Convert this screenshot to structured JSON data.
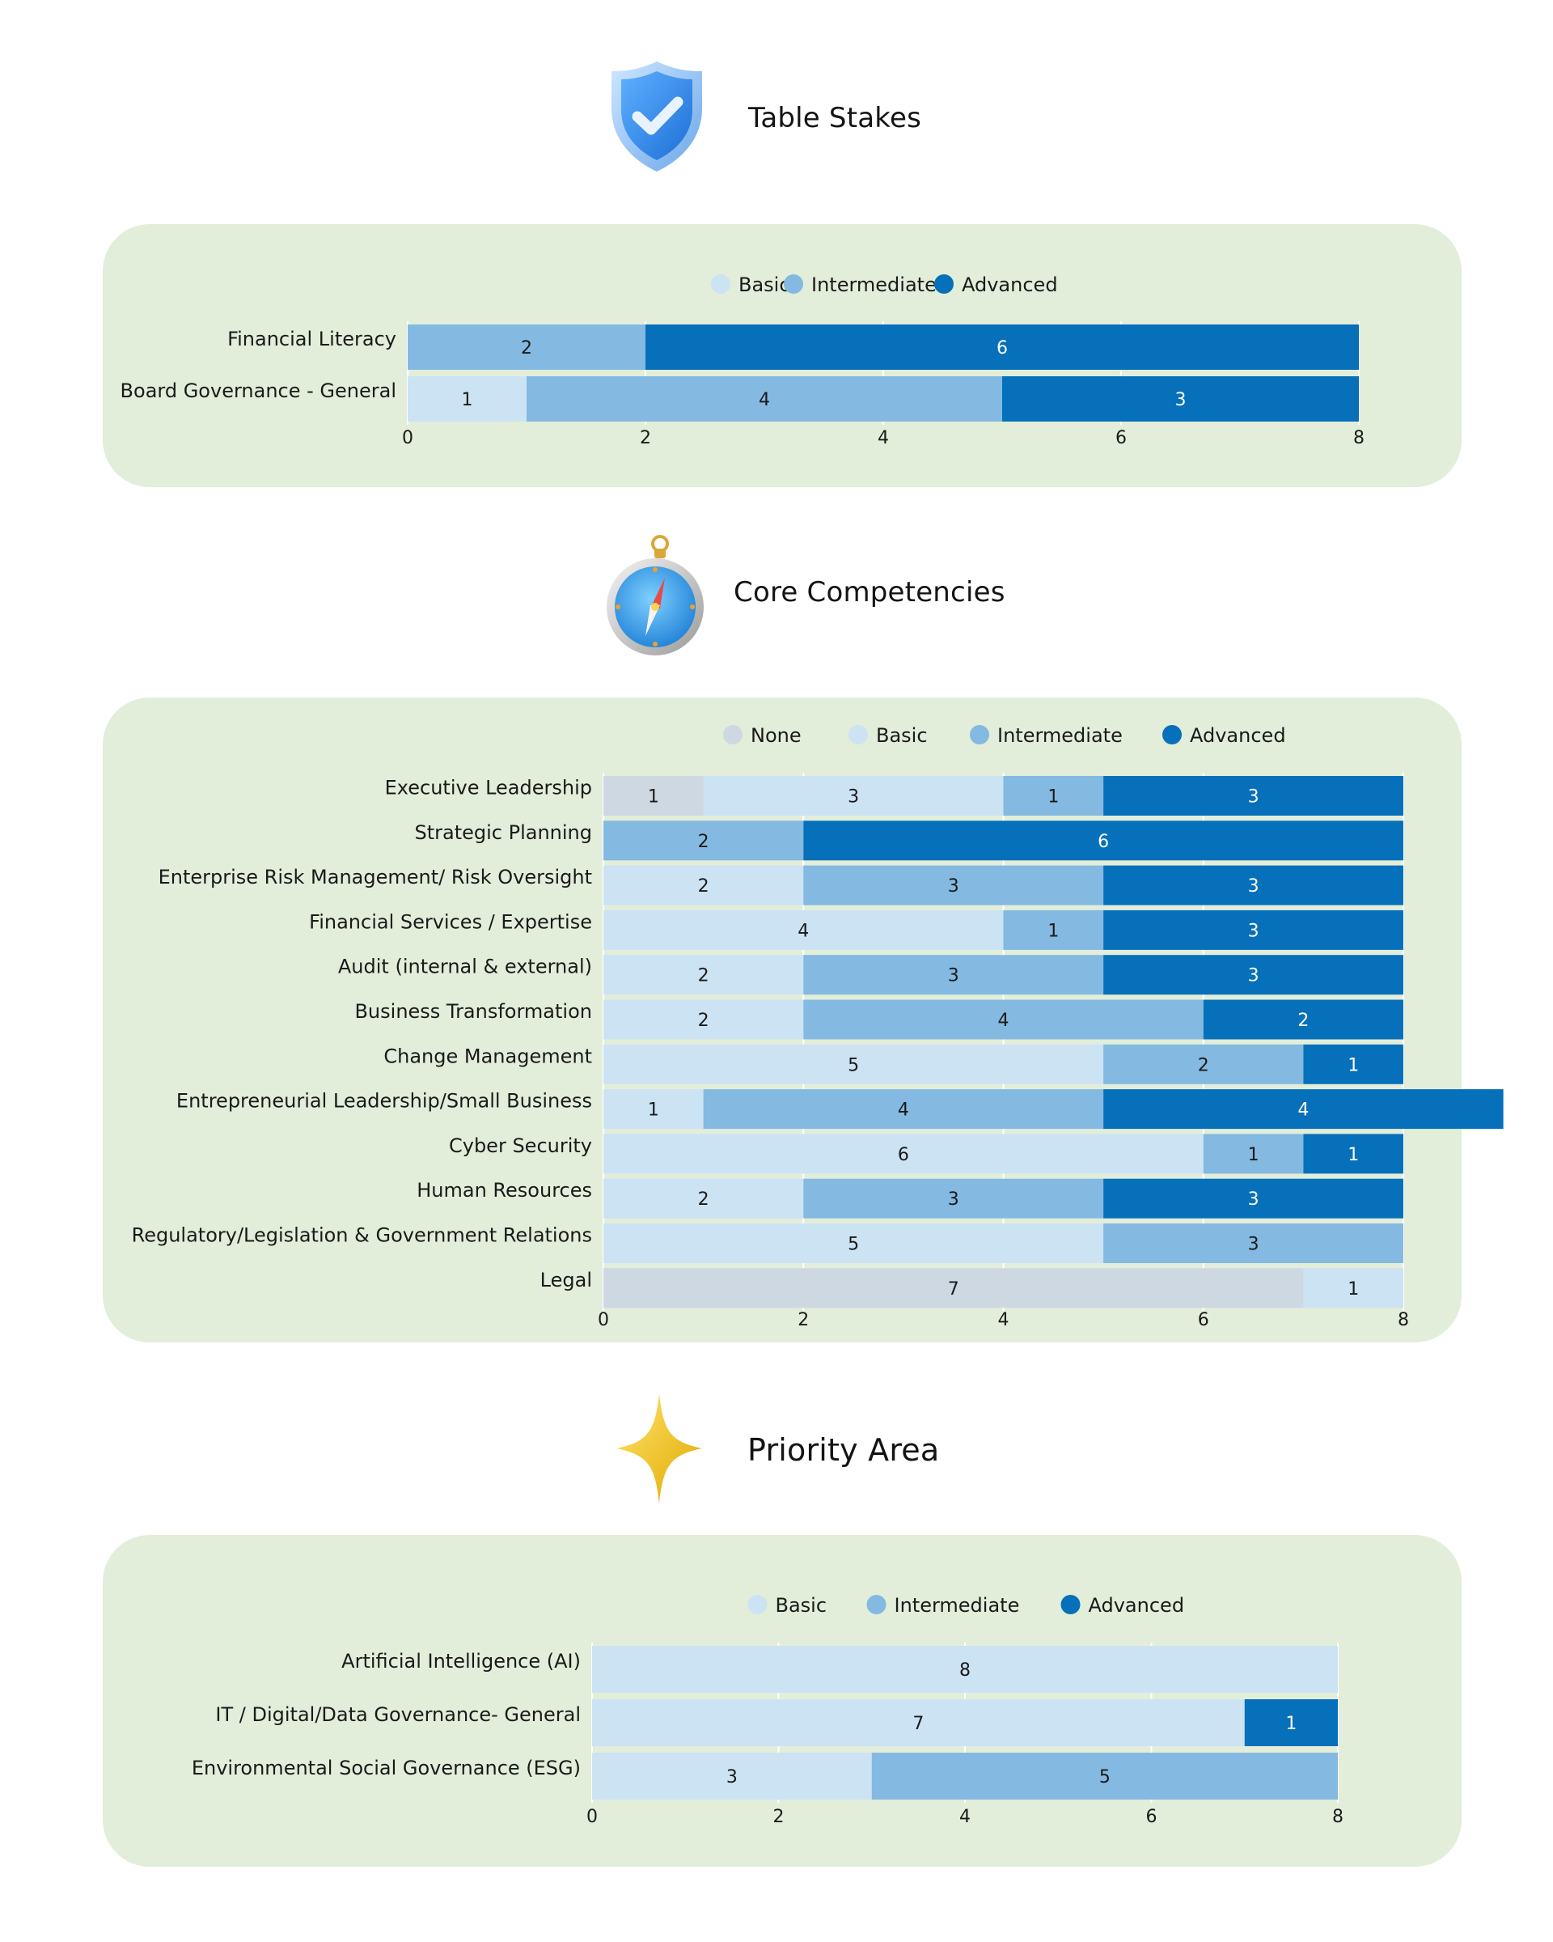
{
  "colors": {
    "None": "#cdd8e3",
    "Basic": "#cce3f3",
    "Intermediate": "#84b9e1",
    "Advanced": "#0670ba",
    "panel": "#e2eed9",
    "grid": "#ffffff",
    "text": "#1a1a1a"
  },
  "sections": {
    "table_stakes": {
      "title": "Table Stakes",
      "icon": "shield-check-icon"
    },
    "core": {
      "title": "Core Competencies",
      "icon": "compass-icon"
    },
    "priority": {
      "title": "Priority Area",
      "icon": "sparkle-star-icon"
    }
  },
  "chart_data": [
    {
      "id": "table_stakes",
      "type": "bar",
      "orientation": "horizontal",
      "stacked": true,
      "categories": [
        "Financial Literacy",
        "Board Governance - General"
      ],
      "series": [
        {
          "name": "Basic",
          "values": [
            0,
            1
          ]
        },
        {
          "name": "Intermediate",
          "values": [
            2,
            4
          ]
        },
        {
          "name": "Advanced",
          "values": [
            6,
            3
          ]
        }
      ],
      "xlim": [
        0,
        8
      ],
      "xticks": [
        0,
        2,
        4,
        6,
        8
      ],
      "legend": [
        "Basic",
        "Intermediate",
        "Advanced"
      ],
      "legend_position": "top-center",
      "grid": true
    },
    {
      "id": "core",
      "type": "bar",
      "orientation": "horizontal",
      "stacked": true,
      "categories": [
        "Executive Leadership",
        "Strategic Planning",
        "Enterprise Risk Management/ Risk Oversight",
        "Financial Services / Expertise",
        "Audit (internal & external)",
        "Business Transformation",
        "Change Management",
        "Entrepreneurial Leadership/Small Business",
        "Cyber Security",
        "Human Resources",
        "Regulatory/Legislation & Government Relations",
        "Legal"
      ],
      "series": [
        {
          "name": "None",
          "values": [
            1,
            0,
            0,
            0,
            0,
            0,
            0,
            0,
            0,
            0,
            0,
            7
          ]
        },
        {
          "name": "Basic",
          "values": [
            3,
            0,
            2,
            4,
            2,
            2,
            5,
            1,
            6,
            2,
            5,
            1
          ]
        },
        {
          "name": "Intermediate",
          "values": [
            1,
            2,
            3,
            1,
            3,
            4,
            2,
            4,
            1,
            3,
            3,
            0
          ]
        },
        {
          "name": "Advanced",
          "values": [
            3,
            6,
            3,
            3,
            3,
            2,
            1,
            4,
            1,
            3,
            0,
            0
          ]
        }
      ],
      "xlim": [
        0,
        8
      ],
      "xticks": [
        0,
        2,
        4,
        6,
        8
      ],
      "legend": [
        "None",
        "Basic",
        "Intermediate",
        "Advanced"
      ],
      "legend_position": "top-center",
      "grid": true
    },
    {
      "id": "priority",
      "type": "bar",
      "orientation": "horizontal",
      "stacked": true,
      "categories": [
        "Artificial Intelligence (AI)",
        "IT / Digital/Data Governance- General",
        "Environmental Social Governance (ESG)"
      ],
      "series": [
        {
          "name": "Basic",
          "values": [
            8,
            7,
            3
          ]
        },
        {
          "name": "Intermediate",
          "values": [
            0,
            0,
            5
          ]
        },
        {
          "name": "Advanced",
          "values": [
            0,
            1,
            0
          ]
        }
      ],
      "xlim": [
        0,
        8
      ],
      "xticks": [
        0,
        2,
        4,
        6,
        8
      ],
      "legend": [
        "Basic",
        "Intermediate",
        "Advanced"
      ],
      "legend_position": "top-center",
      "grid": true
    }
  ]
}
